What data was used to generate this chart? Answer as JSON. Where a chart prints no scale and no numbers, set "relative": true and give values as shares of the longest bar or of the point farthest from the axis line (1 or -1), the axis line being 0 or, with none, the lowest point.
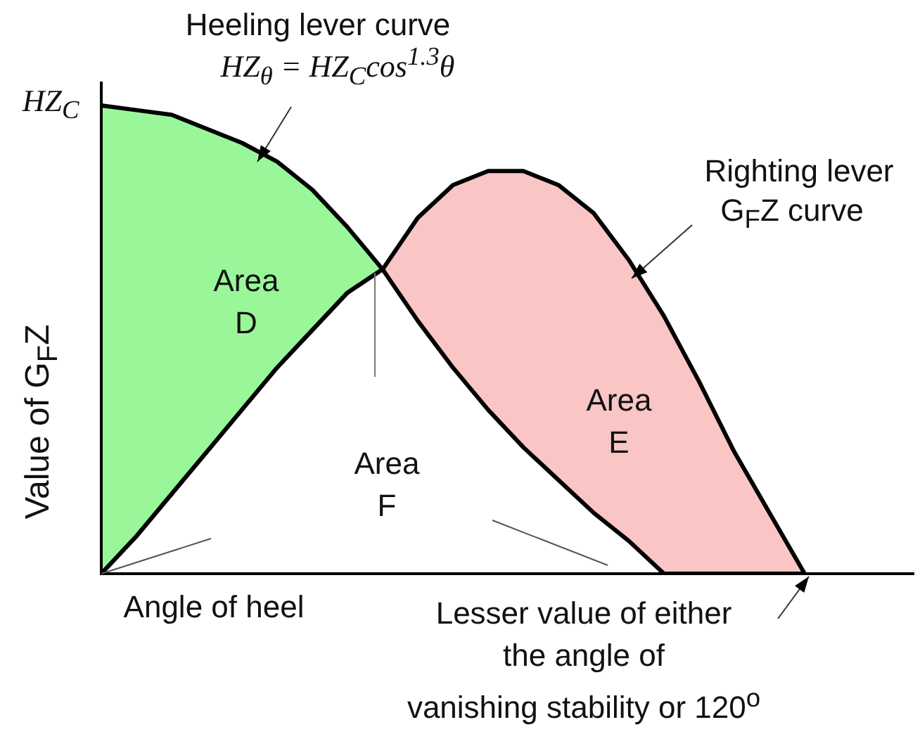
{
  "chart_data": {
    "type": "area",
    "relative": true,
    "ylabel": "Value of G$_{F}$Z",
    "categories": [
      null,
      null,
      null,
      null,
      null,
      null,
      null,
      null,
      null,
      null,
      null,
      null,
      null,
      null,
      null,
      null,
      null,
      null,
      null,
      null,
      null,
      null,
      null,
      null
    ],
    "series": [
      {
        "name": "Area D",
        "color": "#99f799",
        "values": [
          1,
          0.99,
          0.98,
          0.95,
          0.92,
          0.88,
          0.82,
          0.74,
          0.65,
          0.54,
          0.44,
          0.35,
          0.27,
          0.2,
          0.13,
          0.07,
          0,
          null,
          null,
          null,
          null,
          null,
          null,
          null
        ]
      },
      {
        "name": "Area E",
        "color": "#f9c5c5",
        "values": [
          0,
          0.08,
          0.17,
          0.26,
          0.35,
          0.44,
          0.52,
          0.6,
          0.65,
          0.76,
          0.83,
          0.86,
          0.86,
          0.83,
          0.77,
          0.67,
          0.55,
          0.41,
          0.26,
          0.13,
          0,
          null,
          null,
          null
        ]
      },
      {
        "name": "Area F",
        "color": "#ffffff",
        "values": [
          0,
          0.08,
          0.17,
          0.26,
          0.35,
          0.44,
          0.52,
          0.6,
          0.65,
          0.54,
          0.44,
          0.35,
          0.27,
          0.2,
          0.13,
          0.07,
          0,
          0,
          0,
          0,
          0,
          null,
          null,
          null
        ]
      }
    ],
    "annotations": [
      "Heeling lever curve",
      "HZ$_{θ}$ = HZ$_{C}$cos$^{1.3}$θ",
      "HZ$_{C}$",
      "Righting lever",
      "G$_{F}$Z curve",
      "Angle of heel",
      "Lesser value of either the angle of vanishing stability or 120$^{o}$"
    ]
  }
}
